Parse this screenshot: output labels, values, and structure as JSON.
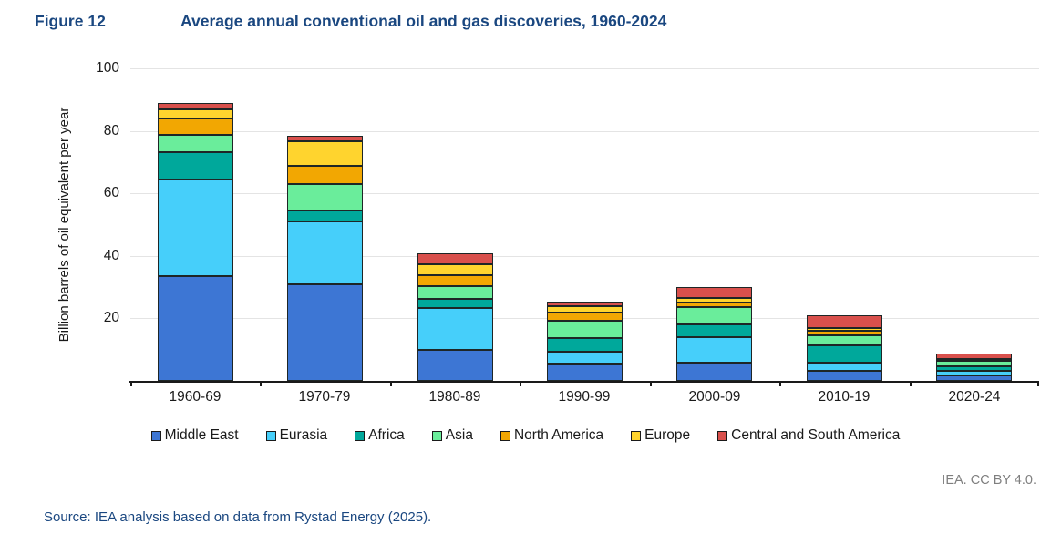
{
  "header": {
    "figure_label": "Figure 12",
    "title": "Average annual conventional oil and gas discoveries, 1960-2024"
  },
  "chart_data": {
    "type": "bar",
    "stacked": true,
    "title": "Average annual conventional oil and gas discoveries, 1960-2024",
    "xlabel": "",
    "ylabel": "Billion barrels of oil equivalent per year",
    "ylim": [
      0,
      100
    ],
    "yticks": [
      20,
      40,
      60,
      80,
      100
    ],
    "grid": true,
    "legend_position": "bottom",
    "categories": [
      "1960-69",
      "1970-79",
      "1980-89",
      "1990-99",
      "2000-09",
      "2010-19",
      "2020-24"
    ],
    "series": [
      {
        "name": "Middle East",
        "color": "#3D76D4",
        "values": [
          33.5,
          31.0,
          10.0,
          5.4,
          5.9,
          3.1,
          1.8
        ]
      },
      {
        "name": "Eurasia",
        "color": "#46CFFA",
        "values": [
          31.0,
          20.0,
          13.3,
          4.0,
          8.2,
          2.8,
          1.3
        ]
      },
      {
        "name": "Africa",
        "color": "#00A89B",
        "values": [
          8.7,
          3.4,
          2.9,
          4.2,
          4.1,
          5.5,
          1.5
        ]
      },
      {
        "name": "Asia",
        "color": "#6AED9B",
        "values": [
          5.5,
          8.5,
          4.1,
          5.7,
          5.4,
          3.2,
          1.7
        ]
      },
      {
        "name": "North America",
        "color": "#F2A702",
        "values": [
          5.3,
          6.0,
          3.5,
          2.7,
          1.6,
          1.4,
          0.5
        ]
      },
      {
        "name": "Europe",
        "color": "#FFD42E",
        "values": [
          3.0,
          7.8,
          3.5,
          1.8,
          1.2,
          1.0,
          0.3
        ]
      },
      {
        "name": "Central and South America",
        "color": "#D9504C",
        "values": [
          2.0,
          1.7,
          3.5,
          1.5,
          3.6,
          4.0,
          1.7
        ]
      }
    ],
    "totals": [
      89.0,
      78.4,
      40.8,
      25.3,
      30.0,
      21.0,
      8.8
    ]
  },
  "footer": {
    "attribution": "IEA. CC BY 4.0.",
    "source": "Source: IEA analysis based on data from Rystad Energy (2025)."
  }
}
